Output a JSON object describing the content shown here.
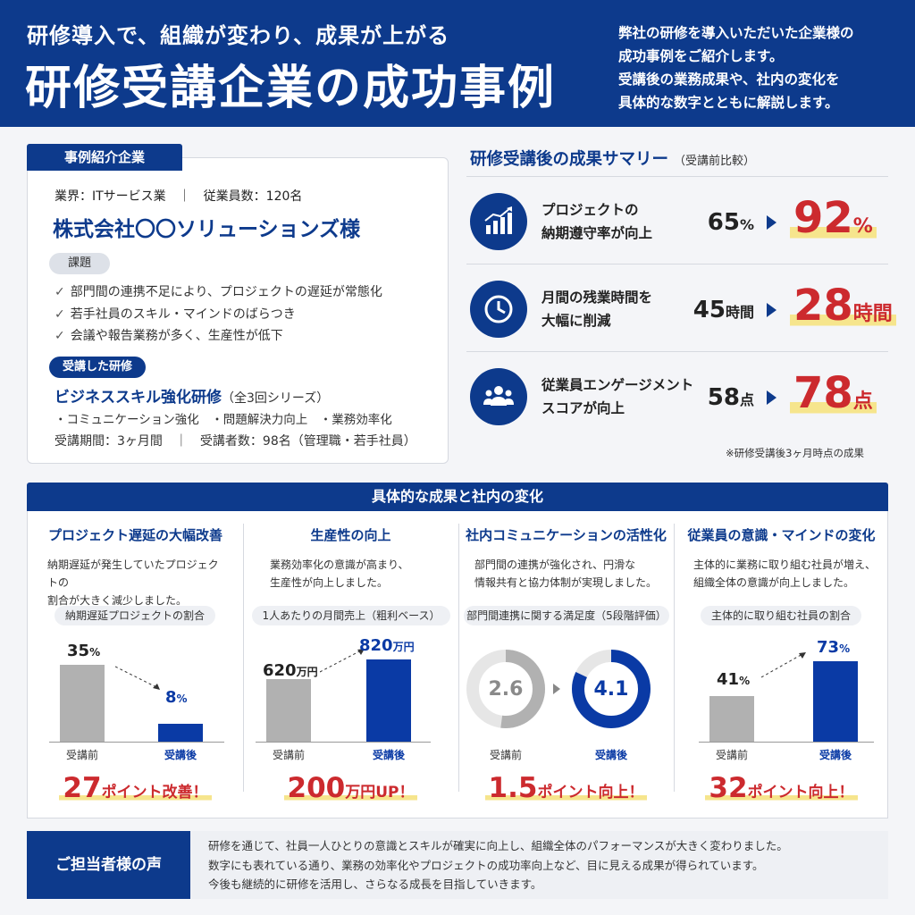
{
  "header": {
    "subtitle": "研修導入で、組織が変わり、成果が上がる",
    "title": "研修受講企業の成功事例",
    "description": [
      "弊社の研修を導入いただいた企業様の",
      "成功事例をご紹介します。",
      "受講後の業務成果や、社内の変化を",
      "具体的な数字とともに解説します。"
    ]
  },
  "company": {
    "tab": "事例紹介企業",
    "meta": "業界：ITサービス業　｜　従業員数：120名",
    "name": "株式会社〇〇ソリューションズ様",
    "issue_label": "課題",
    "issues": [
      "部門間の連携不足により、プロジェクトの遅延が常態化",
      "若手社員のスキル・マインドのばらつき",
      "会議や報告業務が多く、生産性が低下"
    ],
    "training_label": "受講した研修",
    "training_name": "ビジネススキル強化研修",
    "training_series": "（全3回シリーズ）",
    "topics": "・コミュニケーション強化　・問題解決力向上　・業務効率化",
    "period": "受講期間：3ヶ月間　｜　受講者数：98名（管理職・若手社員）"
  },
  "summary": {
    "title": "研修受講後の成果サマリー",
    "note": "（受講前比較）",
    "rows": [
      {
        "icon": "chart-up-icon",
        "label1": "プロジェクトの",
        "label2": "納期遵守率が向上",
        "before": "65",
        "before_unit": "%",
        "after": "92",
        "after_unit": "%"
      },
      {
        "icon": "clock-icon",
        "label1": "月間の残業時間を",
        "label2": "大幅に削減",
        "before": "45",
        "before_unit": "時間",
        "after": "28",
        "after_unit": "時間"
      },
      {
        "icon": "people-icon",
        "label1": "従業員エンゲージメント",
        "label2": "スコアが向上",
        "before": "58",
        "before_unit": "点",
        "after": "78",
        "after_unit": "点"
      }
    ],
    "footnote": "※研修受講後3ヶ月時点の成果"
  },
  "results": {
    "title": "具体的な成果と社内の変化",
    "before_label": "受講前",
    "after_label": "受講後",
    "columns": [
      {
        "title": "プロジェクト遅延の大幅改善",
        "desc": [
          "納期遅延が発生していたプロジェクトの",
          "割合が大きく減少しました。"
        ],
        "metric": "納期遅延プロジェクトの割合",
        "before": "35",
        "before_unit": "%",
        "after": "8",
        "after_unit": "%",
        "before_level": 0.35,
        "after_level": 0.08,
        "result_big": "27",
        "result_text": "ポイント改善！"
      },
      {
        "title": "生産性の向上",
        "desc": [
          "業務効率化の意識が高まり、",
          "生産性が向上しました。"
        ],
        "metric": "1人あたりの月間売上（粗利ベース）",
        "before": "620",
        "before_unit": "万円",
        "after": "820",
        "after_unit": "万円",
        "before_level": 620,
        "after_level": 820,
        "result_big": "200",
        "result_text": "万円UP！"
      },
      {
        "title": "社内コミュニケーションの活性化",
        "desc": [
          "部門間の連携が強化され、円滑な",
          "情報共有と協力体制が実現しました。"
        ],
        "metric": "部門間連携に関する満足度（5段階評価）",
        "before": "2.6",
        "after": "4.1",
        "before_level": 2.6,
        "after_level": 4.1,
        "max_level": 5,
        "result_big": "1.5",
        "result_text": "ポイント向上！"
      },
      {
        "title": "従業員の意識・マインドの変化",
        "desc": [
          "主体的に業務に取り組む社員が増え、",
          "組織全体の意識が向上しました。"
        ],
        "metric": "主体的に取り組む社員の割合",
        "before": "41",
        "before_unit": "%",
        "after": "73",
        "after_unit": "%",
        "before_level": 0.41,
        "after_level": 0.73,
        "result_big": "32",
        "result_text": "ポイント向上！"
      }
    ]
  },
  "voice": {
    "label": "ご担当者様の声",
    "lines": [
      "研修を通じて、社員一人ひとりの意識とスキルが確実に向上し、組織全体のパフォーマンスが大きく変わりました。",
      "数字にも表れている通り、業務の効率化やプロジェクトの成功率向上など、目に見える成果が得られています。",
      "今後も継続的に研修を活用し、さらなる成長を目指していきます。"
    ]
  },
  "colors": {
    "navy": "#0d3a8c",
    "blue": "#0a3aa5",
    "red": "#cc2a2e",
    "gray_bar": "#b1b1b1",
    "highlight": "#f6e58d"
  }
}
